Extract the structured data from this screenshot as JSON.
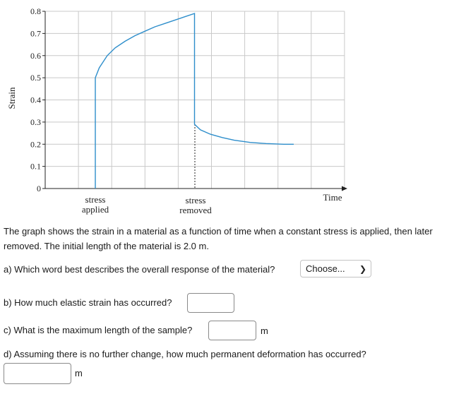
{
  "chart_data": {
    "type": "line",
    "ylabel": "Strain",
    "xlabel": "Time",
    "y_ticks": [
      "0",
      "0.1",
      "0.2",
      "0.3",
      "0.4",
      "0.5",
      "0.6",
      "0.7",
      "0.8"
    ],
    "ylim": [
      0,
      0.8
    ],
    "grid": true,
    "annotations": [
      {
        "label_line1": "stress",
        "label_line2": "applied"
      },
      {
        "label_line1": "stress",
        "label_line2": "removed"
      }
    ],
    "series": [
      {
        "color": "#2e8ecb",
        "x": [
          0,
          0,
          0.02,
          0.06,
          0.1,
          0.15,
          0.2,
          0.25,
          0.3,
          0.35,
          0.4,
          0.45,
          0.5,
          0.5,
          0.53,
          0.58,
          0.64,
          0.7,
          0.78,
          0.86,
          0.95,
          1.0
        ],
        "y": [
          0,
          0.5,
          0.545,
          0.6,
          0.635,
          0.665,
          0.69,
          0.71,
          0.73,
          0.745,
          0.76,
          0.775,
          0.79,
          0.29,
          0.265,
          0.245,
          0.23,
          0.218,
          0.208,
          0.203,
          0.2,
          0.2
        ]
      }
    ]
  },
  "question": {
    "intro": "The graph shows the strain in a material as a function of time when a constant stress is applied, then later removed. The initial length of the material is 2.0 m.",
    "a_text": "a) Which word best describes the overall response of the material?",
    "a_select": "Choose...",
    "b_text": "b) How much elastic strain has occurred?",
    "c_text": "c) What is the maximum length of the sample?",
    "c_unit": "m",
    "d_text": "d) Assuming there is no further change, how much permanent deformation has occurred?",
    "d_unit": "m"
  }
}
